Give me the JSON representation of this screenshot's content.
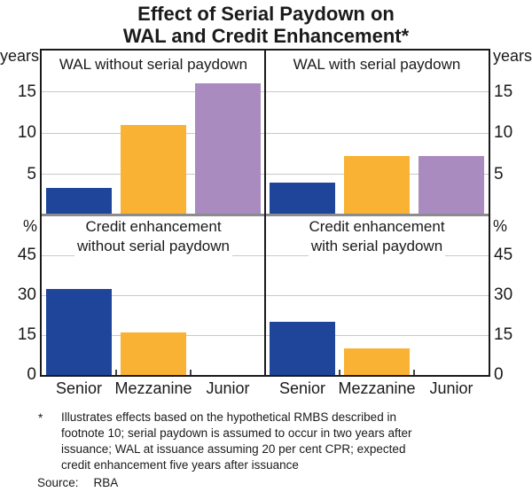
{
  "title": {
    "line1": "Effect of Serial Paydown on",
    "line2": "WAL and Credit Enhancement*"
  },
  "chart_data": {
    "type": "bar",
    "categories": [
      "Senior",
      "Mezzanine",
      "Junior"
    ],
    "bar_colors": [
      "#1F459A",
      "#F9B233",
      "#A98BC0"
    ],
    "grid": true,
    "panels": [
      {
        "position": "top-left",
        "title_lines": [
          "WAL without serial paydown"
        ],
        "unit": "years",
        "ylim": [
          0,
          20
        ],
        "yticks": [
          5,
          10,
          15
        ],
        "values": [
          3.3,
          11,
          16
        ]
      },
      {
        "position": "top-right",
        "title_lines": [
          "WAL with serial paydown"
        ],
        "unit": "years",
        "ylim": [
          0,
          20
        ],
        "yticks": [
          5,
          10,
          15
        ],
        "values": [
          4,
          7.2,
          7.2
        ]
      },
      {
        "position": "bottom-left",
        "title_lines": [
          "Credit enhancement",
          "without serial paydown"
        ],
        "unit": "%",
        "ylim": [
          0,
          60
        ],
        "yticks": [
          0,
          15,
          30,
          45
        ],
        "values": [
          32.5,
          16,
          0
        ]
      },
      {
        "position": "bottom-right",
        "title_lines": [
          "Credit enhancement",
          "with serial paydown"
        ],
        "unit": "%",
        "ylim": [
          0,
          60
        ],
        "yticks": [
          0,
          15,
          30,
          45
        ],
        "values": [
          20,
          10,
          0
        ]
      }
    ]
  },
  "footnote": {
    "symbol": "*",
    "lines": [
      "Illustrates effects based on the hypothetical RMBS described in",
      "footnote 10; serial paydown is assumed to occur in two years after",
      "issuance; WAL at issuance assuming 20 per cent CPR; expected",
      "credit enhancement five years after issuance"
    ],
    "source_label": "Source:",
    "source_value": "RBA"
  }
}
